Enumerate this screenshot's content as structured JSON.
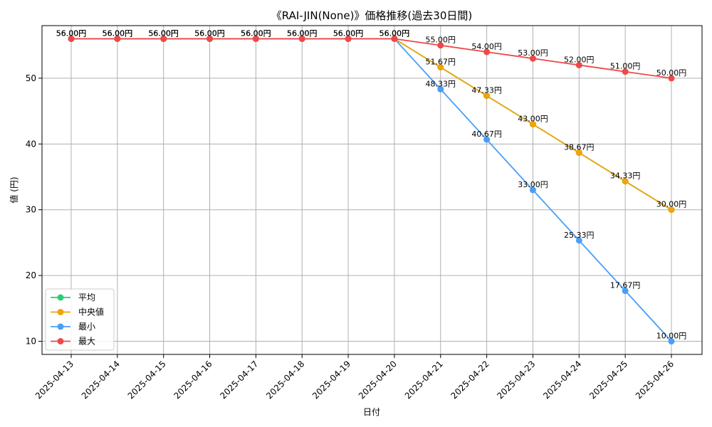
{
  "chart_data": {
    "type": "line",
    "title": "《RAI-JIN(None)》価格推移(過去30日間)",
    "xlabel": "日付",
    "ylabel": "値 (円)",
    "categories": [
      "2025-04-13",
      "2025-04-14",
      "2025-04-15",
      "2025-04-16",
      "2025-04-17",
      "2025-04-18",
      "2025-04-19",
      "2025-04-20",
      "2025-04-21",
      "2025-04-22",
      "2025-04-23",
      "2025-04-24",
      "2025-04-25",
      "2025-04-26"
    ],
    "ylim": [
      8,
      58
    ],
    "yticks": [
      10,
      20,
      30,
      40,
      50
    ],
    "grid": true,
    "legend_position": "lower-left",
    "value_suffix": "円",
    "series": [
      {
        "name": "平均",
        "color": "#2ecc71",
        "values": [
          56.0,
          56.0,
          56.0,
          56.0,
          56.0,
          56.0,
          56.0,
          56.0,
          51.67,
          47.33,
          43.0,
          38.67,
          34.33,
          30.0
        ],
        "labels": false
      },
      {
        "name": "中央値",
        "color": "#f0a30a",
        "values": [
          56.0,
          56.0,
          56.0,
          56.0,
          56.0,
          56.0,
          56.0,
          56.0,
          51.67,
          47.33,
          43.0,
          38.67,
          34.33,
          30.0
        ],
        "labels": true
      },
      {
        "name": "最小",
        "color": "#4a9ff5",
        "values": [
          56.0,
          56.0,
          56.0,
          56.0,
          56.0,
          56.0,
          56.0,
          56.0,
          48.33,
          40.67,
          33.0,
          25.33,
          17.67,
          10.0
        ],
        "labels": true
      },
      {
        "name": "最大",
        "color": "#f04848",
        "values": [
          56.0,
          56.0,
          56.0,
          56.0,
          56.0,
          56.0,
          56.0,
          56.0,
          55.0,
          54.0,
          53.0,
          52.0,
          51.0,
          50.0
        ],
        "labels": true
      }
    ]
  }
}
